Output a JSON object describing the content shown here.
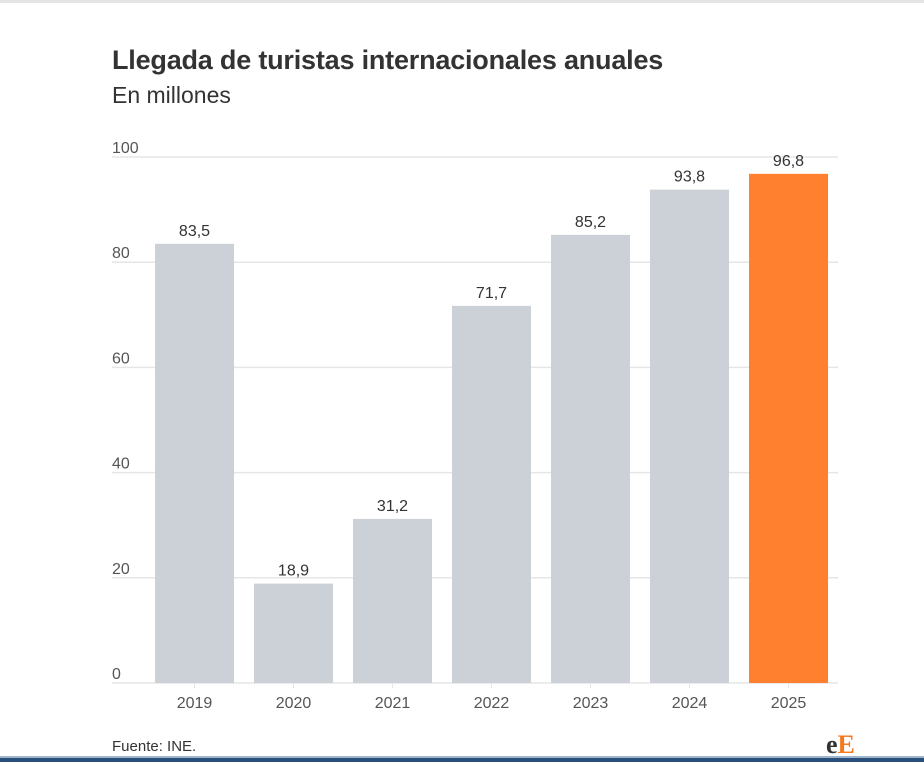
{
  "chart_data": {
    "type": "bar",
    "title": "Llegada de turistas internacionales anuales",
    "subtitle": "En millones",
    "xlabel": "",
    "ylabel": "",
    "categories": [
      "2019",
      "2020",
      "2021",
      "2022",
      "2023",
      "2024",
      "2025"
    ],
    "values": [
      83.5,
      18.9,
      31.2,
      71.7,
      85.2,
      93.8,
      96.8
    ],
    "value_labels": [
      "83,5",
      "18,9",
      "31,2",
      "71,7",
      "85,2",
      "93,8",
      "96,8"
    ],
    "highlight_index": 6,
    "ylim": [
      0,
      100
    ],
    "yticks": [
      0,
      20,
      40,
      60,
      80,
      100
    ],
    "grid": true,
    "legend": "none",
    "colors": {
      "default": "#ccd1d7",
      "highlight": "#ff8130",
      "grid": "#e6e6e6",
      "text": "#333333",
      "axis_text": "#555555"
    }
  },
  "footer": {
    "source": "Fuente: INE.",
    "logo_e": "e",
    "logo_E": "E"
  }
}
